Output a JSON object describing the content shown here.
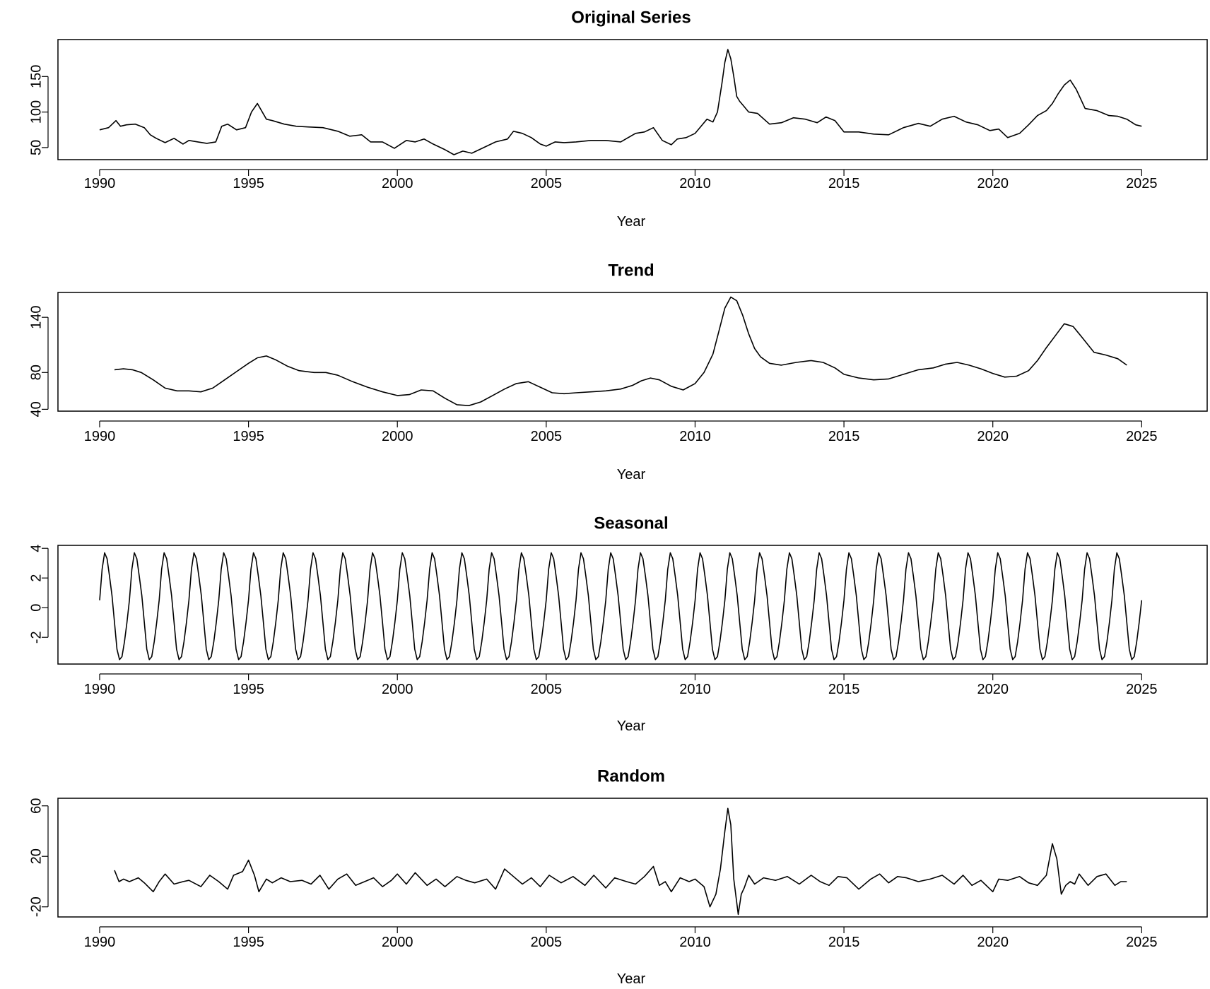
{
  "chart_data": [
    {
      "type": "line",
      "title": "Original Series",
      "xlabel": "Year",
      "ylabel": "",
      "xlim": [
        1988.6,
        2027.2
      ],
      "ylim": [
        33,
        202
      ],
      "xticks": [
        1990,
        1995,
        2000,
        2005,
        2010,
        2015,
        2020,
        2025
      ],
      "yticks": [
        50,
        100,
        150
      ],
      "series": [
        {
          "x": [
            1990.0,
            1990.3,
            1990.55,
            1990.7,
            1990.9,
            1991.2,
            1991.5,
            1991.7,
            1991.9,
            1992.2,
            1992.5,
            1992.8,
            1993.0,
            1993.3,
            1993.6,
            1993.9,
            1994.1,
            1994.3,
            1994.6,
            1994.9,
            1995.1,
            1995.3,
            1995.6,
            1995.8,
            1996.2,
            1996.6,
            1997.0,
            1997.5,
            1998.0,
            1998.4,
            1998.8,
            1999.1,
            1999.5,
            1999.9,
            2000.3,
            2000.6,
            2000.9,
            2001.2,
            2001.6,
            2001.9,
            2002.2,
            2002.5,
            2002.9,
            2003.3,
            2003.7,
            2003.9,
            2004.2,
            2004.5,
            2004.8,
            2005.0,
            2005.3,
            2005.6,
            2006.0,
            2006.5,
            2007.0,
            2007.5,
            2008.0,
            2008.3,
            2008.6,
            2008.9,
            2009.2,
            2009.4,
            2009.7,
            2010.0,
            2010.2,
            2010.4,
            2010.6,
            2010.75,
            2010.9,
            2011.0,
            2011.1,
            2011.2,
            2011.3,
            2011.4,
            2011.5,
            2011.6,
            2011.8,
            2012.1,
            2012.5,
            2012.9,
            2013.3,
            2013.7,
            2014.1,
            2014.4,
            2014.7,
            2015.0,
            2015.5,
            2016.0,
            2016.5,
            2017.0,
            2017.5,
            2017.9,
            2018.3,
            2018.7,
            2019.1,
            2019.5,
            2019.9,
            2020.2,
            2020.5,
            2020.9,
            2021.2,
            2021.5,
            2021.8,
            2022.0,
            2022.2,
            2022.4,
            2022.6,
            2022.8,
            2023.1,
            2023.5,
            2023.9,
            2024.2,
            2024.5,
            2024.8,
            2025.0
          ],
          "values": [
            75,
            78,
            88,
            80,
            82,
            83,
            78,
            68,
            63,
            57,
            63,
            55,
            60,
            58,
            56,
            58,
            80,
            83,
            75,
            78,
            100,
            112,
            90,
            88,
            83,
            80,
            79,
            78,
            73,
            66,
            68,
            58,
            58,
            49,
            60,
            58,
            62,
            55,
            47,
            40,
            45,
            42,
            50,
            58,
            62,
            73,
            70,
            64,
            55,
            52,
            58,
            57,
            58,
            60,
            60,
            58,
            70,
            72,
            78,
            60,
            54,
            62,
            64,
            70,
            80,
            90,
            86,
            100,
            140,
            170,
            188,
            175,
            150,
            122,
            115,
            110,
            100,
            98,
            83,
            85,
            92,
            90,
            85,
            93,
            88,
            72,
            72,
            69,
            68,
            78,
            84,
            80,
            90,
            94,
            86,
            82,
            74,
            76,
            64,
            70,
            82,
            95,
            102,
            112,
            126,
            138,
            145,
            132,
            105,
            102,
            95,
            94,
            90,
            82,
            80
          ]
        }
      ]
    },
    {
      "type": "line",
      "title": "Trend",
      "xlabel": "Year",
      "ylabel": "",
      "xlim": [
        1988.6,
        2027.2
      ],
      "ylim": [
        38,
        167
      ],
      "xticks": [
        1990,
        1995,
        2000,
        2005,
        2010,
        2015,
        2020,
        2025
      ],
      "yticks": [
        40,
        80,
        140
      ],
      "series": [
        {
          "x": [
            1990.5,
            1990.8,
            1991.1,
            1991.4,
            1991.8,
            1992.2,
            1992.6,
            1993.0,
            1993.4,
            1993.8,
            1994.2,
            1994.6,
            1995.0,
            1995.3,
            1995.6,
            1995.9,
            1996.3,
            1996.7,
            1997.2,
            1997.6,
            1998.0,
            1998.5,
            1999.0,
            1999.5,
            2000.0,
            2000.4,
            2000.8,
            2001.2,
            2001.6,
            2002.0,
            2002.4,
            2002.8,
            2003.2,
            2003.6,
            2004.0,
            2004.4,
            2004.8,
            2005.2,
            2005.6,
            2006.0,
            2006.5,
            2007.0,
            2007.5,
            2007.9,
            2008.2,
            2008.5,
            2008.8,
            2009.2,
            2009.6,
            2010.0,
            2010.3,
            2010.6,
            2010.8,
            2011.0,
            2011.2,
            2011.4,
            2011.6,
            2011.8,
            2012.0,
            2012.2,
            2012.5,
            2012.9,
            2013.4,
            2013.9,
            2014.3,
            2014.7,
            2015.0,
            2015.5,
            2016.0,
            2016.5,
            2017.0,
            2017.5,
            2018.0,
            2018.4,
            2018.8,
            2019.2,
            2019.6,
            2020.0,
            2020.4,
            2020.8,
            2021.2,
            2021.5,
            2021.8,
            2022.1,
            2022.4,
            2022.7,
            2023.0,
            2023.4,
            2023.8,
            2024.2,
            2024.5
          ],
          "values": [
            83,
            84,
            83,
            80,
            72,
            63,
            60,
            60,
            59,
            63,
            72,
            81,
            90,
            96,
            98,
            94,
            87,
            82,
            80,
            80,
            77,
            70,
            64,
            59,
            55,
            56,
            61,
            60,
            52,
            45,
            44,
            48,
            55,
            62,
            68,
            70,
            64,
            58,
            57,
            58,
            59,
            60,
            62,
            66,
            71,
            74,
            72,
            65,
            61,
            68,
            80,
            100,
            125,
            150,
            162,
            158,
            142,
            122,
            106,
            97,
            90,
            88,
            91,
            93,
            91,
            85,
            78,
            74,
            72,
            73,
            78,
            83,
            85,
            89,
            91,
            88,
            84,
            79,
            75,
            76,
            82,
            93,
            107,
            120,
            133,
            130,
            118,
            102,
            99,
            95,
            88
          ]
        }
      ]
    },
    {
      "type": "line",
      "title": "Seasonal",
      "xlabel": "Year",
      "ylabel": "",
      "xlim": [
        1988.6,
        2027.2
      ],
      "ylim": [
        -3.8,
        4.2
      ],
      "xticks": [
        1990,
        1995,
        2000,
        2005,
        2010,
        2015,
        2020,
        2025
      ],
      "yticks": [
        -2,
        0,
        2,
        4
      ],
      "pattern": {
        "start": 1990,
        "end": 2025,
        "period_years": 1,
        "monthly_values": [
          0.5,
          2.6,
          3.7,
          3.3,
          2.1,
          0.8,
          -1.0,
          -2.8,
          -3.5,
          -3.3,
          -2.3,
          -1.0
        ]
      }
    },
    {
      "type": "line",
      "title": "Random",
      "xlabel": "Year",
      "ylabel": "",
      "xlim": [
        1988.6,
        2027.2
      ],
      "ylim": [
        -28,
        66
      ],
      "xticks": [
        1990,
        1995,
        2000,
        2005,
        2010,
        2015,
        2020,
        2025
      ],
      "yticks": [
        -20,
        20,
        60
      ],
      "series": [
        {
          "x": [
            1990.5,
            1990.65,
            1990.8,
            1991.0,
            1991.3,
            1991.5,
            1991.8,
            1992.0,
            1992.2,
            1992.5,
            1992.8,
            1993.0,
            1993.4,
            1993.7,
            1994.0,
            1994.3,
            1994.5,
            1994.8,
            1995.0,
            1995.2,
            1995.35,
            1995.6,
            1995.8,
            1996.1,
            1996.4,
            1996.8,
            1997.1,
            1997.4,
            1997.7,
            1998.0,
            1998.3,
            1998.6,
            1998.9,
            1999.2,
            1999.5,
            1999.8,
            2000.0,
            2000.3,
            2000.6,
            2001.0,
            2001.3,
            2001.6,
            2002.0,
            2002.3,
            2002.6,
            2003.0,
            2003.3,
            2003.6,
            2003.9,
            2004.2,
            2004.5,
            2004.8,
            2005.1,
            2005.5,
            2005.9,
            2006.3,
            2006.6,
            2007.0,
            2007.3,
            2007.7,
            2008.0,
            2008.3,
            2008.6,
            2008.8,
            2009.0,
            2009.2,
            2009.5,
            2009.8,
            2010.0,
            2010.3,
            2010.5,
            2010.7,
            2010.85,
            2011.0,
            2011.1,
            2011.2,
            2011.3,
            2011.45,
            2011.55,
            2011.65,
            2011.8,
            2012.0,
            2012.3,
            2012.7,
            2013.1,
            2013.5,
            2013.9,
            2014.2,
            2014.5,
            2014.8,
            2015.1,
            2015.5,
            2015.9,
            2016.2,
            2016.5,
            2016.8,
            2017.1,
            2017.5,
            2017.9,
            2018.3,
            2018.7,
            2019.0,
            2019.3,
            2019.6,
            2020.0,
            2020.2,
            2020.5,
            2020.9,
            2021.2,
            2021.5,
            2021.8,
            2022.0,
            2022.15,
            2022.3,
            2022.45,
            2022.6,
            2022.75,
            2022.9,
            2023.2,
            2023.5,
            2023.8,
            2024.1,
            2024.3,
            2024.5
          ],
          "values": [
            9,
            0,
            2,
            0,
            3,
            -1,
            -8,
            0,
            6,
            -2,
            0,
            1,
            -4,
            5,
            0,
            -6,
            5,
            8,
            17,
            5,
            -8,
            2,
            -1,
            3,
            0,
            1,
            -2,
            5,
            -6,
            2,
            6,
            -3,
            0,
            3,
            -4,
            1,
            6,
            -2,
            7,
            -3,
            2,
            -4,
            4,
            1,
            -1,
            2,
            -6,
            10,
            4,
            -2,
            3,
            -4,
            5,
            -1,
            4,
            -3,
            5,
            -5,
            3,
            0,
            -2,
            4,
            12,
            -3,
            0,
            -8,
            3,
            0,
            2,
            -4,
            -20,
            -10,
            10,
            40,
            58,
            45,
            2,
            -26,
            -10,
            -5,
            5,
            -2,
            3,
            1,
            4,
            -2,
            5,
            0,
            -3,
            4,
            3,
            -6,
            2,
            6,
            -1,
            4,
            3,
            0,
            2,
            5,
            -2,
            5,
            -3,
            1,
            -8,
            2,
            1,
            4,
            -1,
            -3,
            5,
            30,
            18,
            -10,
            -3,
            0,
            -2,
            6,
            -3,
            4,
            6,
            -3,
            0,
            0
          ]
        }
      ]
    }
  ]
}
